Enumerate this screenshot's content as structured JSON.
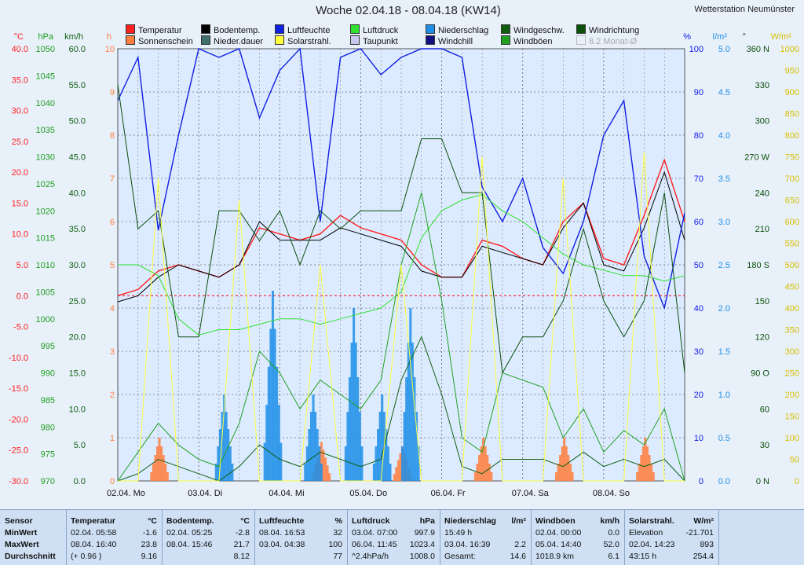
{
  "header": {
    "title": "Woche 02.04.18 - 08.04.18 (KW14)",
    "station": "Wetterstation Neumünster"
  },
  "legend": [
    {
      "label": "Temperatur",
      "color": "#ff2020"
    },
    {
      "label": "Sonnenschein",
      "color": "#ff7f3f"
    },
    {
      "label": "Bodentemp.",
      "color": "#000000"
    },
    {
      "label": "Nieder.dauer",
      "color": "#3f6f6f"
    },
    {
      "label": "Luftfeuchte",
      "color": "#1020e0"
    },
    {
      "label": "Solarstrahl.",
      "color": "#ffff40"
    },
    {
      "label": "Luftdruck",
      "color": "#30e030"
    },
    {
      "label": "Taupunkt",
      "color": "#c8c8f0"
    },
    {
      "label": "Niederschlag",
      "color": "#1e8fe8"
    },
    {
      "label": "Windchill",
      "color": "#101080"
    },
    {
      "label": "Windgeschw.",
      "color": "#106010"
    },
    {
      "label": "Windböen",
      "color": "#20a020"
    },
    {
      "label": "Windrichtung",
      "color": "#0a500a"
    },
    {
      "label": "8.2 Monat-Ø",
      "color": "#e8f0fa"
    }
  ],
  "colors": {
    "bg": "#dcebff",
    "grid": "#707070",
    "zero": "#ff0000"
  },
  "axes": {
    "temp_unit": "°C",
    "temp_color": "#ff2020",
    "temp_ticks": [
      "40.0",
      "35.0",
      "30.0",
      "25.0",
      "20.0",
      "15.0",
      "10.0",
      "5.0",
      "0.0",
      "-5.0",
      "-10.0",
      "-15.0",
      "-20.0",
      "-25.0",
      "-30.0"
    ],
    "hpa_unit": "hPa",
    "hpa_color": "#20a020",
    "hpa_ticks": [
      "1050",
      "1045",
      "1040",
      "1035",
      "1030",
      "1025",
      "1020",
      "1015",
      "1010",
      "1005",
      "1000",
      "995",
      "990",
      "985",
      "980",
      "975",
      "970"
    ],
    "kmh_unit": "km/h",
    "kmh_color": "#106010",
    "kmh_ticks": [
      "60.0",
      "55.0",
      "50.0",
      "45.0",
      "40.0",
      "35.0",
      "30.0",
      "25.0",
      "20.0",
      "15.0",
      "10.0",
      "5.0",
      "0.0"
    ],
    "h_unit": "h",
    "h_color": "#ff7f3f",
    "h_ticks": [
      "10",
      "9",
      "8",
      "7",
      "6",
      "5",
      "4",
      "3",
      "2",
      "1",
      "0"
    ],
    "pct_unit": "%",
    "pct_color": "#1020e0",
    "pct_ticks": [
      "100",
      "90",
      "80",
      "70",
      "60",
      "50",
      "40",
      "30",
      "20",
      "10",
      "0"
    ],
    "lm2_unit": "l/m²",
    "lm2_color": "#1e8fe8",
    "lm2_ticks": [
      "5.0",
      "4.5",
      "4.0",
      "3.5",
      "3.0",
      "2.5",
      "2.0",
      "1.5",
      "1.0",
      "0.5",
      "0.0"
    ],
    "deg_unit": "°",
    "deg_color": "#0a500a",
    "deg_ticks": [
      "360 N",
      "330",
      "300",
      "270 W",
      "240",
      "210",
      "180 S",
      "150",
      "120",
      "90 O",
      "60",
      "30",
      "0 N"
    ],
    "wm2_unit": "W/m²",
    "wm2_color": "#d8c000",
    "wm2_ticks": [
      "1000",
      "950",
      "900",
      "850",
      "800",
      "750",
      "700",
      "650",
      "600",
      "550",
      "500",
      "450",
      "400",
      "350",
      "300",
      "250",
      "200",
      "150",
      "100",
      "50",
      "0"
    ],
    "days": [
      "02.04. Mo",
      "03.04. Di",
      "04.04. Mi",
      "05.04. Do",
      "06.04. Fr",
      "07.04. Sa",
      "08.04. So"
    ]
  },
  "chart_data": {
    "type": "line",
    "x_unit": "Tag (02.04.–08.04.18)",
    "x": [
      0,
      0.25,
      0.5,
      0.75,
      1,
      1.25,
      1.5,
      1.75,
      2,
      2.25,
      2.5,
      2.75,
      3,
      3.25,
      3.5,
      3.75,
      4,
      4.25,
      4.5,
      4.75,
      5,
      5.25,
      5.5,
      5.75,
      6,
      6.25,
      6.5,
      6.75,
      7
    ],
    "series": [
      {
        "name": "Temperatur",
        "axis": "°C",
        "color": "#ff2020",
        "values": [
          0,
          1,
          4,
          5,
          4,
          3,
          5,
          11,
          10,
          9,
          10,
          13,
          11,
          10,
          9,
          5,
          3,
          3,
          9,
          8,
          6,
          5,
          12,
          15,
          6,
          5,
          13,
          22,
          12
        ]
      },
      {
        "name": "Bodentemp.",
        "axis": "°C",
        "color": "#000000",
        "values": [
          -1,
          0,
          3,
          5,
          4,
          3,
          5,
          12,
          9,
          9,
          9,
          11,
          10,
          9,
          8,
          4,
          3,
          3,
          8,
          7,
          6,
          5,
          11,
          15,
          5,
          4,
          11,
          20,
          9
        ]
      },
      {
        "name": "Luftfeuchte",
        "axis": "%",
        "color": "#1020e0",
        "values": [
          88,
          98,
          58,
          80,
          100,
          98,
          100,
          84,
          95,
          100,
          60,
          98,
          100,
          94,
          98,
          100,
          100,
          98,
          68,
          60,
          70,
          54,
          48,
          60,
          80,
          88,
          52,
          40,
          62
        ]
      },
      {
        "name": "Luftdruck",
        "axis": "hPa",
        "color": "#30e030",
        "values": [
          1010,
          1010,
          1008,
          1000,
          997,
          998,
          998,
          999,
          1000,
          1000,
          999,
          1000,
          1001,
          1002,
          1005,
          1015,
          1020,
          1022,
          1023,
          1020,
          1018,
          1015,
          1012,
          1010,
          1009,
          1008,
          1008,
          1007,
          1008
        ]
      },
      {
        "name": "Windgeschw.",
        "axis": "km/h",
        "color": "#106010",
        "values": [
          0,
          1,
          3,
          2,
          1,
          0,
          2,
          5,
          3,
          2,
          4,
          3,
          2,
          3,
          14,
          20,
          12,
          2,
          1,
          3,
          3,
          3,
          2,
          4,
          2,
          3,
          2,
          3,
          0
        ]
      },
      {
        "name": "Windböen",
        "axis": "km/h",
        "color": "#20a020",
        "values": [
          0,
          4,
          8,
          5,
          3,
          2,
          8,
          18,
          15,
          10,
          14,
          12,
          10,
          14,
          30,
          40,
          25,
          6,
          4,
          15,
          14,
          13,
          6,
          10,
          4,
          7,
          5,
          10,
          0
        ]
      },
      {
        "name": "Windrichtung",
        "axis": "°",
        "color": "#0a500a",
        "values": [
          330,
          210,
          225,
          120,
          120,
          225,
          225,
          200,
          225,
          180,
          225,
          210,
          225,
          225,
          225,
          285,
          285,
          240,
          240,
          90,
          120,
          120,
          150,
          210,
          150,
          120,
          150,
          240,
          90
        ]
      },
      {
        "name": "Solarstrahl.",
        "axis": "W/m²",
        "color": "#ffff40",
        "values": [
          0,
          0,
          700,
          0,
          0,
          0,
          650,
          0,
          0,
          0,
          500,
          0,
          0,
          0,
          500,
          0,
          0,
          0,
          750,
          0,
          0,
          0,
          700,
          0,
          0,
          0,
          760,
          0,
          0
        ]
      }
    ],
    "bars": [
      {
        "name": "Sonnenschein",
        "axis": "h",
        "color": "#ff7f3f",
        "peaks": [
          [
            0.5,
            1.0
          ],
          [
            2.5,
            0.9
          ],
          [
            3.5,
            0.8
          ],
          [
            4.5,
            1.0
          ],
          [
            5.5,
            1.0
          ],
          [
            6.5,
            1.0
          ]
        ]
      },
      {
        "name": "Niederschlag",
        "axis": "l/m²",
        "color": "#1e8fe8",
        "peaks": [
          [
            1.3,
            1.0
          ],
          [
            1.9,
            2.2
          ],
          [
            2.4,
            1.0
          ],
          [
            2.9,
            2.0
          ],
          [
            3.25,
            1.0
          ],
          [
            3.6,
            2.0
          ]
        ]
      }
    ],
    "ylim": {
      "°C": [
        -30,
        40
      ],
      "hPa": [
        970,
        1050
      ],
      "km/h": [
        0,
        60
      ],
      "h": [
        0,
        10
      ],
      "%": [
        0,
        100
      ],
      "l/m²": [
        0,
        5
      ],
      "°": [
        0,
        360
      ],
      "W/m²": [
        0,
        1000
      ]
    },
    "grid": true
  },
  "stats": {
    "rowlabels": {
      "h": "Sensor",
      "min": "MinWert",
      "max": "MaxWert",
      "avg": "Durchschnitt"
    },
    "blocks": [
      {
        "title": "Temperatur",
        "unit": "°C",
        "min_t": "02.04.  05:58",
        "min_v": "-1.6",
        "max_t": "08.04.  16:40",
        "max_v": "23.8",
        "avg_t": "(+ 0.96 )",
        "avg_v": "9.16"
      },
      {
        "title": "Bodentemp.",
        "unit": "°C",
        "min_t": "02.04.  05:25",
        "min_v": "-2.8",
        "max_t": "08.04.  15:46",
        "max_v": "21.7",
        "avg_t": "",
        "avg_v": "8.12"
      },
      {
        "title": "Luftfeuchte",
        "unit": "%",
        "min_t": "08.04.  16:53",
        "min_v": "32",
        "max_t": "03.04.  04:38",
        "max_v": "100",
        "avg_t": "",
        "avg_v": "77"
      },
      {
        "title": "Luftdruck",
        "unit": "hPa",
        "min_t": "03.04.  07:00",
        "min_v": "997.9",
        "max_t": "06.04.  11:45",
        "max_v": "1023.4",
        "avg_t": "^2.4hPa/h",
        "avg_v": "1008.0"
      },
      {
        "title": "Niederschlag",
        "unit": "l/m²",
        "min_t": "15:49 h",
        "min_v": "",
        "max_t": "03.04.  16:39",
        "max_v": "2.2",
        "avg_t": "Gesamt:",
        "avg_v": "14.6"
      },
      {
        "title": "Windböen",
        "unit": "km/h",
        "min_t": "02.04.  00:00",
        "min_v": "0.0",
        "max_t": "05.04.  14:40",
        "max_v": "52.0",
        "avg_t": "1018.9 km",
        "avg_v": "6.1"
      },
      {
        "title": "Solarstrahl.",
        "unit": "W/m²",
        "min_t": "Elevation",
        "min_v": "-21.701",
        "max_t": "02.04.  14:23",
        "max_v": "893",
        "avg_t": "43:15 h",
        "avg_v": "254.4"
      }
    ]
  }
}
